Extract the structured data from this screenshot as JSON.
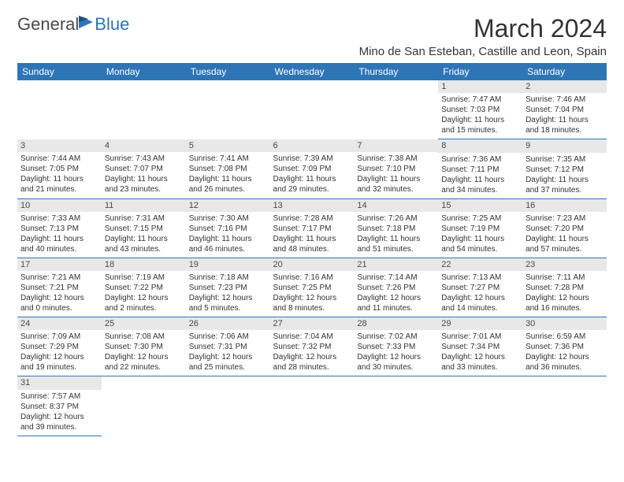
{
  "brand": {
    "part1": "General",
    "part2": "Blue"
  },
  "title": "March 2024",
  "location": "Mino de San Esteban, Castille and Leon, Spain",
  "colors": {
    "header_bg": "#2e75b6",
    "daynum_bg": "#e8e8e8",
    "border": "#2e75b6"
  },
  "weekdays": [
    "Sunday",
    "Monday",
    "Tuesday",
    "Wednesday",
    "Thursday",
    "Friday",
    "Saturday"
  ],
  "weeks": [
    [
      null,
      null,
      null,
      null,
      null,
      {
        "n": "1",
        "sr": "Sunrise: 7:47 AM",
        "ss": "Sunset: 7:03 PM",
        "dl": "Daylight: 11 hours and 15 minutes."
      },
      {
        "n": "2",
        "sr": "Sunrise: 7:46 AM",
        "ss": "Sunset: 7:04 PM",
        "dl": "Daylight: 11 hours and 18 minutes."
      }
    ],
    [
      {
        "n": "3",
        "sr": "Sunrise: 7:44 AM",
        "ss": "Sunset: 7:05 PM",
        "dl": "Daylight: 11 hours and 21 minutes."
      },
      {
        "n": "4",
        "sr": "Sunrise: 7:43 AM",
        "ss": "Sunset: 7:07 PM",
        "dl": "Daylight: 11 hours and 23 minutes."
      },
      {
        "n": "5",
        "sr": "Sunrise: 7:41 AM",
        "ss": "Sunset: 7:08 PM",
        "dl": "Daylight: 11 hours and 26 minutes."
      },
      {
        "n": "6",
        "sr": "Sunrise: 7:39 AM",
        "ss": "Sunset: 7:09 PM",
        "dl": "Daylight: 11 hours and 29 minutes."
      },
      {
        "n": "7",
        "sr": "Sunrise: 7:38 AM",
        "ss": "Sunset: 7:10 PM",
        "dl": "Daylight: 11 hours and 32 minutes."
      },
      {
        "n": "8",
        "sr": "Sunrise: 7:36 AM",
        "ss": "Sunset: 7:11 PM",
        "dl": "Daylight: 11 hours and 34 minutes."
      },
      {
        "n": "9",
        "sr": "Sunrise: 7:35 AM",
        "ss": "Sunset: 7:12 PM",
        "dl": "Daylight: 11 hours and 37 minutes."
      }
    ],
    [
      {
        "n": "10",
        "sr": "Sunrise: 7:33 AM",
        "ss": "Sunset: 7:13 PM",
        "dl": "Daylight: 11 hours and 40 minutes."
      },
      {
        "n": "11",
        "sr": "Sunrise: 7:31 AM",
        "ss": "Sunset: 7:15 PM",
        "dl": "Daylight: 11 hours and 43 minutes."
      },
      {
        "n": "12",
        "sr": "Sunrise: 7:30 AM",
        "ss": "Sunset: 7:16 PM",
        "dl": "Daylight: 11 hours and 46 minutes."
      },
      {
        "n": "13",
        "sr": "Sunrise: 7:28 AM",
        "ss": "Sunset: 7:17 PM",
        "dl": "Daylight: 11 hours and 48 minutes."
      },
      {
        "n": "14",
        "sr": "Sunrise: 7:26 AM",
        "ss": "Sunset: 7:18 PM",
        "dl": "Daylight: 11 hours and 51 minutes."
      },
      {
        "n": "15",
        "sr": "Sunrise: 7:25 AM",
        "ss": "Sunset: 7:19 PM",
        "dl": "Daylight: 11 hours and 54 minutes."
      },
      {
        "n": "16",
        "sr": "Sunrise: 7:23 AM",
        "ss": "Sunset: 7:20 PM",
        "dl": "Daylight: 11 hours and 57 minutes."
      }
    ],
    [
      {
        "n": "17",
        "sr": "Sunrise: 7:21 AM",
        "ss": "Sunset: 7:21 PM",
        "dl": "Daylight: 12 hours and 0 minutes."
      },
      {
        "n": "18",
        "sr": "Sunrise: 7:19 AM",
        "ss": "Sunset: 7:22 PM",
        "dl": "Daylight: 12 hours and 2 minutes."
      },
      {
        "n": "19",
        "sr": "Sunrise: 7:18 AM",
        "ss": "Sunset: 7:23 PM",
        "dl": "Daylight: 12 hours and 5 minutes."
      },
      {
        "n": "20",
        "sr": "Sunrise: 7:16 AM",
        "ss": "Sunset: 7:25 PM",
        "dl": "Daylight: 12 hours and 8 minutes."
      },
      {
        "n": "21",
        "sr": "Sunrise: 7:14 AM",
        "ss": "Sunset: 7:26 PM",
        "dl": "Daylight: 12 hours and 11 minutes."
      },
      {
        "n": "22",
        "sr": "Sunrise: 7:13 AM",
        "ss": "Sunset: 7:27 PM",
        "dl": "Daylight: 12 hours and 14 minutes."
      },
      {
        "n": "23",
        "sr": "Sunrise: 7:11 AM",
        "ss": "Sunset: 7:28 PM",
        "dl": "Daylight: 12 hours and 16 minutes."
      }
    ],
    [
      {
        "n": "24",
        "sr": "Sunrise: 7:09 AM",
        "ss": "Sunset: 7:29 PM",
        "dl": "Daylight: 12 hours and 19 minutes."
      },
      {
        "n": "25",
        "sr": "Sunrise: 7:08 AM",
        "ss": "Sunset: 7:30 PM",
        "dl": "Daylight: 12 hours and 22 minutes."
      },
      {
        "n": "26",
        "sr": "Sunrise: 7:06 AM",
        "ss": "Sunset: 7:31 PM",
        "dl": "Daylight: 12 hours and 25 minutes."
      },
      {
        "n": "27",
        "sr": "Sunrise: 7:04 AM",
        "ss": "Sunset: 7:32 PM",
        "dl": "Daylight: 12 hours and 28 minutes."
      },
      {
        "n": "28",
        "sr": "Sunrise: 7:02 AM",
        "ss": "Sunset: 7:33 PM",
        "dl": "Daylight: 12 hours and 30 minutes."
      },
      {
        "n": "29",
        "sr": "Sunrise: 7:01 AM",
        "ss": "Sunset: 7:34 PM",
        "dl": "Daylight: 12 hours and 33 minutes."
      },
      {
        "n": "30",
        "sr": "Sunrise: 6:59 AM",
        "ss": "Sunset: 7:36 PM",
        "dl": "Daylight: 12 hours and 36 minutes."
      }
    ],
    [
      {
        "n": "31",
        "sr": "Sunrise: 7:57 AM",
        "ss": "Sunset: 8:37 PM",
        "dl": "Daylight: 12 hours and 39 minutes."
      },
      null,
      null,
      null,
      null,
      null,
      null
    ]
  ]
}
